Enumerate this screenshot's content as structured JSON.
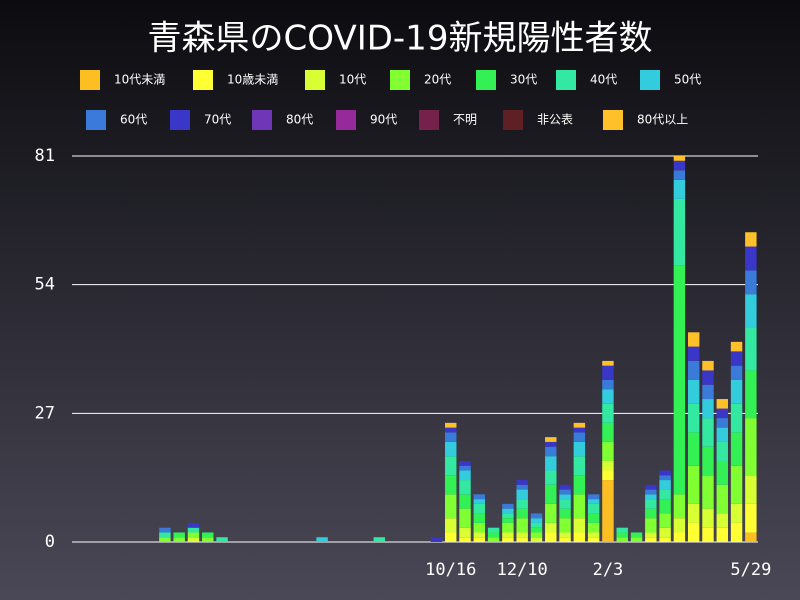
{
  "chart_data": {
    "type": "stacked-bar",
    "title": "青森県のCOVID-19新規陽性者数",
    "categories": [
      null,
      null,
      null,
      null,
      null,
      null,
      null,
      null,
      null,
      null,
      null,
      null,
      null,
      null,
      null,
      null,
      null,
      null,
      null,
      null,
      null,
      null,
      null,
      null,
      null,
      null,
      "10/16",
      null,
      null,
      null,
      null,
      "12/10",
      null,
      null,
      null,
      null,
      null,
      "2/3",
      null,
      null,
      null,
      null,
      null,
      null,
      null,
      null,
      null,
      "5/29"
    ],
    "ylim": [
      0,
      81
    ],
    "yticks": [
      0,
      27,
      54,
      81
    ],
    "grid": true,
    "series": [
      {
        "name": "10代未満",
        "color": "#fbbf24",
        "values": [
          0,
          0,
          0,
          0,
          0,
          0,
          0,
          0,
          0,
          0,
          0,
          0,
          0,
          0,
          0,
          0,
          0,
          0,
          0,
          0,
          0,
          0,
          0,
          0,
          0,
          0,
          0,
          0,
          0,
          0,
          0,
          0,
          0,
          0,
          0,
          0,
          0,
          13,
          0,
          0,
          0,
          0,
          0,
          0,
          0,
          0,
          0,
          2
        ]
      },
      {
        "name": "10歳未満",
        "color": "#ffff33",
        "values": [
          0,
          0,
          0,
          0,
          0,
          0,
          0,
          0,
          0,
          0,
          0,
          0,
          0,
          0,
          0,
          0,
          0,
          0,
          0,
          0,
          0,
          0,
          0,
          0,
          0,
          0,
          2,
          1,
          1,
          0,
          1,
          1,
          0,
          2,
          1,
          2,
          1,
          2,
          0,
          0,
          1,
          1,
          2,
          4,
          3,
          3,
          4,
          6
        ]
      },
      {
        "name": "10代",
        "color": "#d8ff33",
        "values": [
          0,
          0,
          0,
          0,
          0,
          0,
          0,
          0,
          1,
          0,
          0,
          0,
          0,
          0,
          0,
          0,
          0,
          0,
          0,
          0,
          0,
          0,
          0,
          0,
          0,
          0,
          3,
          2,
          1,
          0,
          1,
          1,
          1,
          2,
          1,
          3,
          1,
          2,
          0,
          0,
          1,
          2,
          3,
          4,
          4,
          3,
          4,
          6
        ]
      },
      {
        "name": "20代",
        "color": "#80ff33",
        "values": [
          0,
          0,
          0,
          0,
          0,
          0,
          1,
          1,
          1,
          1,
          0,
          0,
          0,
          0,
          0,
          0,
          0,
          0,
          0,
          0,
          0,
          0,
          0,
          0,
          0,
          0,
          5,
          4,
          2,
          1,
          2,
          3,
          1,
          4,
          3,
          5,
          2,
          4,
          1,
          1,
          3,
          3,
          5,
          8,
          7,
          6,
          8,
          12
        ]
      },
      {
        "name": "30代",
        "color": "#33f055",
        "values": [
          0,
          0,
          0,
          0,
          0,
          0,
          0,
          1,
          0,
          1,
          0,
          0,
          0,
          0,
          0,
          0,
          0,
          0,
          0,
          0,
          0,
          0,
          0,
          0,
          0,
          0,
          4,
          3,
          2,
          1,
          1,
          2,
          1,
          4,
          2,
          4,
          2,
          4,
          1,
          1,
          2,
          3,
          48,
          7,
          6,
          5,
          7,
          10
        ]
      },
      {
        "name": "40代",
        "color": "#33e8a0",
        "values": [
          0,
          0,
          0,
          0,
          0,
          0,
          1,
          0,
          1,
          0,
          1,
          0,
          0,
          0,
          0,
          0,
          0,
          0,
          0,
          0,
          0,
          1,
          0,
          0,
          0,
          0,
          4,
          3,
          2,
          1,
          1,
          2,
          1,
          3,
          2,
          4,
          2,
          4,
          1,
          0,
          2,
          2,
          14,
          6,
          6,
          4,
          6,
          9
        ]
      },
      {
        "name": "50代",
        "color": "#33ccdd",
        "values": [
          0,
          0,
          0,
          0,
          0,
          0,
          0,
          0,
          0,
          0,
          0,
          0,
          0,
          0,
          0,
          0,
          0,
          1,
          0,
          0,
          0,
          0,
          0,
          0,
          0,
          0,
          3,
          2,
          1,
          0,
          1,
          2,
          1,
          3,
          1,
          3,
          1,
          3,
          0,
          0,
          1,
          2,
          4,
          5,
          4,
          3,
          5,
          7
        ]
      },
      {
        "name": "60代",
        "color": "#3a7ad8",
        "values": [
          0,
          0,
          0,
          0,
          0,
          0,
          1,
          0,
          0,
          0,
          0,
          0,
          0,
          0,
          0,
          0,
          0,
          0,
          0,
          0,
          0,
          0,
          0,
          0,
          0,
          0,
          2,
          1,
          1,
          0,
          1,
          1,
          1,
          2,
          1,
          2,
          1,
          2,
          0,
          0,
          1,
          1,
          2,
          4,
          3,
          2,
          3,
          5
        ]
      },
      {
        "name": "70代",
        "color": "#3a36c8",
        "values": [
          0,
          0,
          0,
          0,
          0,
          0,
          0,
          0,
          1,
          0,
          0,
          0,
          0,
          0,
          0,
          0,
          0,
          0,
          0,
          0,
          0,
          0,
          0,
          0,
          0,
          1,
          1,
          1,
          0,
          0,
          0,
          1,
          0,
          1,
          1,
          1,
          0,
          3,
          0,
          0,
          1,
          1,
          2,
          3,
          3,
          2,
          3,
          5
        ]
      },
      {
        "name": "80代",
        "color": "#7036b8",
        "values": [
          0,
          0,
          0,
          0,
          0,
          0,
          0,
          0,
          0,
          0,
          0,
          0,
          0,
          0,
          0,
          0,
          0,
          0,
          0,
          0,
          0,
          0,
          0,
          0,
          0,
          0,
          0,
          0,
          0,
          0,
          0,
          0,
          0,
          0,
          0,
          0,
          0,
          0,
          0,
          0,
          0,
          0,
          0,
          0,
          0,
          0,
          0,
          0
        ]
      },
      {
        "name": "90代",
        "color": "#962a9a",
        "values": [
          0,
          0,
          0,
          0,
          0,
          0,
          0,
          0,
          0,
          0,
          0,
          0,
          0,
          0,
          0,
          0,
          0,
          0,
          0,
          0,
          0,
          0,
          0,
          0,
          0,
          0,
          0,
          0,
          0,
          0,
          0,
          0,
          0,
          0,
          0,
          0,
          0,
          0,
          0,
          0,
          0,
          0,
          0,
          0,
          0,
          0,
          0,
          0
        ]
      },
      {
        "name": "不明",
        "color": "#74224c",
        "values": [
          0,
          0,
          0,
          0,
          0,
          0,
          0,
          0,
          0,
          0,
          0,
          0,
          0,
          0,
          0,
          0,
          0,
          0,
          0,
          0,
          0,
          0,
          0,
          0,
          0,
          0,
          0,
          0,
          0,
          0,
          0,
          0,
          0,
          0,
          0,
          0,
          0,
          0,
          0,
          0,
          0,
          0,
          0,
          0,
          0,
          0,
          0,
          0
        ]
      },
      {
        "name": "非公表",
        "color": "#5e2024",
        "values": [
          0,
          0,
          0,
          0,
          0,
          0,
          0,
          0,
          0,
          0,
          0,
          0,
          0,
          0,
          0,
          0,
          0,
          0,
          0,
          0,
          0,
          0,
          0,
          0,
          0,
          0,
          0,
          0,
          0,
          0,
          0,
          0,
          0,
          0,
          0,
          0,
          0,
          0,
          0,
          0,
          0,
          0,
          0,
          0,
          0,
          0,
          0,
          0
        ]
      },
      {
        "name": "80代以上",
        "color": "#ffc02a",
        "values": [
          0,
          0,
          0,
          0,
          0,
          0,
          0,
          0,
          0,
          0,
          0,
          0,
          0,
          0,
          0,
          0,
          0,
          0,
          0,
          0,
          0,
          0,
          0,
          0,
          0,
          0,
          1,
          0,
          0,
          0,
          0,
          0,
          0,
          1,
          0,
          1,
          0,
          1,
          0,
          0,
          0,
          0,
          1,
          3,
          2,
          2,
          2,
          3
        ]
      }
    ]
  }
}
